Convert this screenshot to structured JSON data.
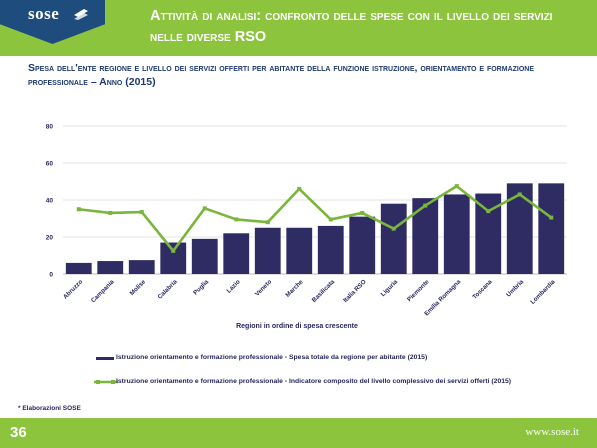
{
  "logo": {
    "text": "sose"
  },
  "slide_title": "Attività di analisi: confronto delle spese con il livello dei servizi nelle diverse RSO",
  "chart_heading": "Spesa dell'ente regione e livello dei servizi offerti per abitante della funzione istruzione, orientamento e formazione professionale – Anno (2015)",
  "footnote": "* Elaborazioni SOSE",
  "footer": {
    "page_number": "36",
    "site": "www.sose.it"
  },
  "colors": {
    "header_green": "#8cc43e",
    "logo_blue": "#1e4c7c",
    "bar": "#2e2c62",
    "line": "#7ab53c"
  },
  "chart_data": {
    "type": "bar",
    "xlabel": "Regioni in ordine di spesa crescente",
    "ylabel": "",
    "ylim": [
      0,
      80
    ],
    "yticks": [
      0,
      20,
      40,
      60,
      80
    ],
    "grid": true,
    "legend_position": "bottom",
    "categories": [
      "Abruzzo",
      "Campania",
      "Molise",
      "Calabria",
      "Puglia",
      "Lazio",
      "Veneto",
      "Marche",
      "Basilicata",
      "Italia RSO",
      "Liguria",
      "Piemonte",
      "Emilia Romagna",
      "Toscana",
      "Umbria",
      "Lombardia"
    ],
    "series": [
      {
        "name": "Istruzione orientamento e formazione professionale - Spesa totale da regione per abitante (2015)",
        "type": "bar",
        "values": [
          6,
          7,
          7.5,
          17,
          19,
          22,
          25,
          25,
          26,
          31,
          38,
          41,
          43,
          43.5,
          49,
          49
        ]
      },
      {
        "name": "Istruzione orientamento e formazione professionale - Indicatore composito del livello complessivo dei servizi offerti (2015)",
        "type": "line",
        "values": [
          35,
          33,
          33.5,
          12.5,
          35.5,
          29.5,
          28,
          46,
          29.5,
          33,
          24.5,
          37,
          47.5,
          34,
          43,
          30.5
        ]
      }
    ]
  }
}
